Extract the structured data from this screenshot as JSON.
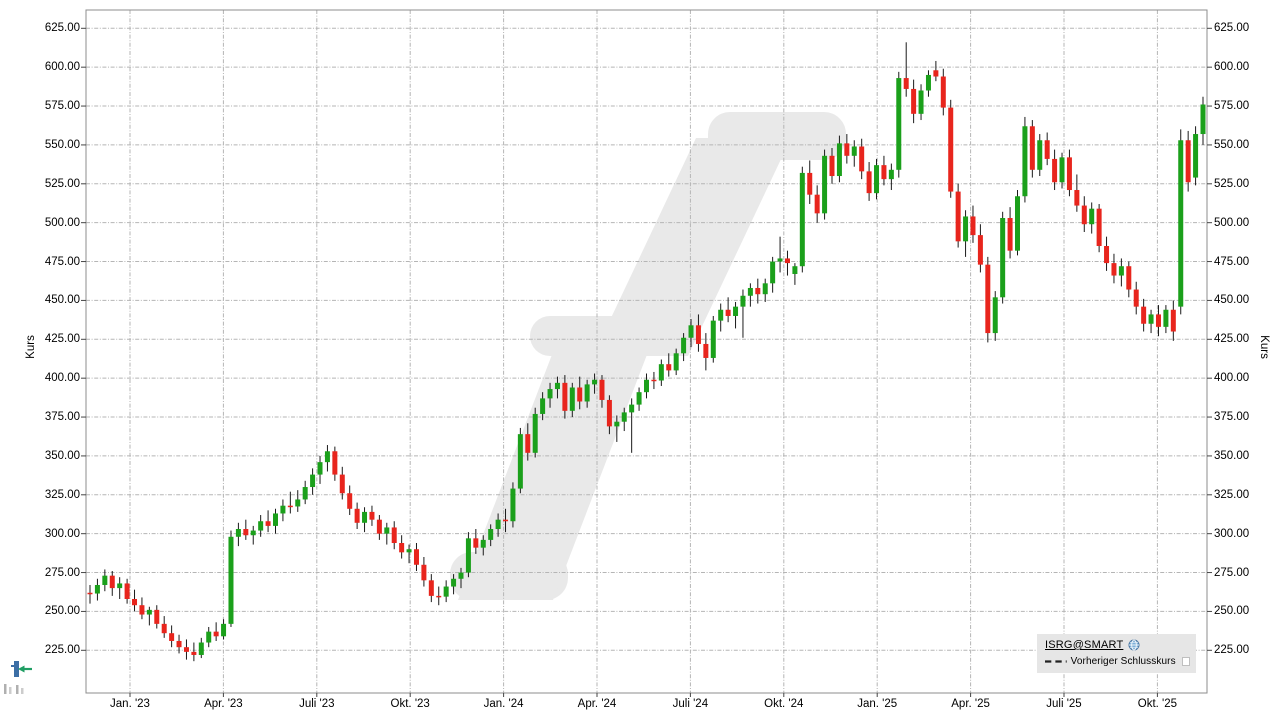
{
  "axes": {
    "left_axis_title": "Kurs",
    "right_axis_title": "Kurs"
  },
  "legend": {
    "series_label": "ISRG@SMART",
    "previous_close_label": "Vorheriger Schlusskurs",
    "icons": {
      "series": "globe-icon",
      "previous_close": "dashed-line-sample",
      "toggle": "legend-checkbox"
    }
  },
  "corner_tools": {
    "icons": {
      "chart_type": "candlestick-tool-icon",
      "volume": "volume-bars-icon"
    }
  },
  "chart_data": {
    "type": "candlestick",
    "series_name": "ISRG@SMART",
    "interval": "weekly",
    "title": "",
    "ylabel": "Kurs",
    "grid": true,
    "legend_position": "bottom-right",
    "ylim": [
      197,
      637
    ],
    "y_tick_values": [
      625,
      600,
      575,
      550,
      525,
      500,
      475,
      450,
      425,
      400,
      375,
      350,
      325,
      300,
      275,
      250,
      225
    ],
    "y_tick_labels": [
      "625.00",
      "600.00",
      "575.00",
      "550.00",
      "525.00",
      "500.00",
      "475.00",
      "450.00",
      "425.00",
      "400.00",
      "375.00",
      "350.00",
      "325.00",
      "300.00",
      "275.00",
      "250.00",
      "225.00"
    ],
    "x_tick_labels": [
      "Jan. '23",
      "Apr. '23",
      "Juli '23",
      "Okt. '23",
      "Jan. '24",
      "Apr. '24",
      "Juli '24",
      "Okt. '24",
      "Jan. '25",
      "Apr. '25",
      "Juli '25",
      "Okt. '25"
    ],
    "colors": {
      "up": "#1ba01b",
      "down": "#e8251d",
      "wick": "#1a1a1a",
      "grid": "#b5b5b5",
      "border": "#8c8c8c",
      "tick": "#444444",
      "watermark": "#e9e9e9",
      "legend_bg": "#e6e6e6",
      "text": "#000000"
    },
    "candles_ohlc": [
      [
        262,
        267,
        255,
        261.5
      ],
      [
        261.5,
        271,
        257,
        267
      ],
      [
        267,
        277,
        263,
        273
      ],
      [
        273,
        276,
        260,
        265
      ],
      [
        265,
        272,
        258,
        268
      ],
      [
        268,
        271,
        255,
        258
      ],
      [
        258,
        264,
        250,
        254
      ],
      [
        254,
        259,
        245,
        248
      ],
      [
        248,
        253,
        241,
        251
      ],
      [
        251,
        254,
        239,
        242
      ],
      [
        242,
        247,
        233,
        236
      ],
      [
        236,
        241,
        227,
        231
      ],
      [
        231,
        235,
        223,
        227
      ],
      [
        227,
        232,
        219,
        224
      ],
      [
        224,
        230,
        218,
        222
      ],
      [
        222,
        233,
        220,
        230
      ],
      [
        230,
        240,
        227,
        237
      ],
      [
        237,
        243,
        231,
        234
      ],
      [
        234,
        245,
        232,
        242
      ],
      [
        242,
        302,
        240,
        298
      ],
      [
        298,
        307,
        292,
        303
      ],
      [
        303,
        309,
        296,
        299
      ],
      [
        299,
        305,
        293,
        302
      ],
      [
        302,
        312,
        298,
        308
      ],
      [
        308,
        315,
        301,
        305
      ],
      [
        305,
        316,
        300,
        313
      ],
      [
        313,
        322,
        308,
        318
      ],
      [
        318,
        327,
        313,
        317.5
      ],
      [
        317.5,
        328,
        314,
        322
      ],
      [
        322,
        334,
        319,
        330
      ],
      [
        330,
        342,
        325,
        338
      ],
      [
        338,
        350,
        332,
        346
      ],
      [
        346,
        357,
        340,
        353
      ],
      [
        353,
        356,
        334,
        338
      ],
      [
        338,
        343,
        322,
        326
      ],
      [
        326,
        331,
        312,
        316
      ],
      [
        316,
        320,
        303,
        307
      ],
      [
        307,
        317,
        301,
        314
      ],
      [
        314,
        318,
        305,
        309
      ],
      [
        309,
        312,
        296,
        300
      ],
      [
        300,
        307,
        293,
        304
      ],
      [
        304,
        308,
        290,
        294
      ],
      [
        294,
        299,
        284,
        288
      ],
      [
        288,
        293,
        281,
        290
      ],
      [
        290,
        294,
        276,
        280
      ],
      [
        280,
        285,
        266,
        270
      ],
      [
        270,
        274,
        256,
        260
      ],
      [
        260,
        266,
        254,
        259.5
      ],
      [
        259.5,
        270,
        256,
        266
      ],
      [
        266,
        274,
        261,
        271
      ],
      [
        271,
        278,
        265,
        275
      ],
      [
        275,
        301,
        272,
        297
      ],
      [
        297,
        303,
        287,
        291
      ],
      [
        291,
        299,
        286,
        296
      ],
      [
        296,
        306,
        292,
        303
      ],
      [
        303,
        313,
        298,
        309
      ],
      [
        309,
        316,
        301,
        308
      ],
      [
        308,
        333,
        304,
        329
      ],
      [
        329,
        368,
        326,
        364
      ],
      [
        364,
        371,
        347,
        352
      ],
      [
        352,
        381,
        349,
        377
      ],
      [
        377,
        391,
        373,
        387
      ],
      [
        387,
        397,
        381,
        393
      ],
      [
        393,
        401,
        387,
        397
      ],
      [
        397,
        402,
        374,
        379
      ],
      [
        379,
        397,
        375,
        394
      ],
      [
        394,
        401,
        380,
        385
      ],
      [
        385,
        399,
        381,
        396
      ],
      [
        396,
        403,
        390,
        399
      ],
      [
        399,
        402,
        381,
        386
      ],
      [
        386,
        389,
        364,
        369
      ],
      [
        369,
        376,
        359,
        372
      ],
      [
        372,
        381,
        366,
        378
      ],
      [
        378,
        387,
        352,
        383
      ],
      [
        383,
        394,
        379,
        391
      ],
      [
        391,
        403,
        387,
        399
      ],
      [
        399,
        404,
        393,
        398.5
      ],
      [
        398.5,
        412,
        395,
        409
      ],
      [
        409,
        416,
        401,
        405
      ],
      [
        405,
        419,
        402,
        416
      ],
      [
        416,
        429,
        411,
        426
      ],
      [
        426,
        438,
        420,
        434
      ],
      [
        434,
        441,
        417,
        422
      ],
      [
        422,
        429,
        405,
        413
      ],
      [
        413,
        440,
        410,
        437
      ],
      [
        437,
        448,
        430,
        444
      ],
      [
        444,
        452,
        436,
        440
      ],
      [
        440,
        449,
        432,
        446
      ],
      [
        446,
        457,
        426,
        453
      ],
      [
        453,
        461,
        446,
        458
      ],
      [
        458,
        464,
        448,
        454
      ],
      [
        454,
        464,
        449,
        461
      ],
      [
        461,
        478,
        455,
        475
      ],
      [
        475,
        491,
        468,
        477
      ],
      [
        477,
        482,
        466,
        474
      ],
      [
        467,
        474,
        460,
        472
      ],
      [
        472,
        536,
        468,
        532
      ],
      [
        532,
        540,
        512,
        518
      ],
      [
        518,
        524,
        500,
        506
      ],
      [
        506,
        547,
        502,
        543
      ],
      [
        543,
        548,
        525,
        530
      ],
      [
        530,
        556,
        526,
        551
      ],
      [
        551,
        557,
        538,
        543
      ],
      [
        543,
        553,
        536,
        549
      ],
      [
        549,
        554,
        528,
        533
      ],
      [
        533,
        539,
        514,
        519
      ],
      [
        519,
        541,
        515,
        537
      ],
      [
        537,
        543,
        524,
        528
      ],
      [
        528,
        538,
        521,
        534
      ],
      [
        534,
        597,
        529,
        593
      ],
      [
        593,
        616,
        581,
        586
      ],
      [
        586,
        592,
        564,
        570
      ],
      [
        570,
        589,
        566,
        585
      ],
      [
        585,
        598,
        581,
        595
      ],
      [
        598,
        604,
        591,
        594
      ],
      [
        594,
        599,
        569,
        574
      ],
      [
        574,
        579,
        516,
        520
      ],
      [
        520,
        525,
        484,
        488
      ],
      [
        488,
        508,
        478,
        504
      ],
      [
        504,
        511,
        487,
        492
      ],
      [
        492,
        499,
        468,
        473
      ],
      [
        473,
        478,
        423,
        429
      ],
      [
        429,
        456,
        424,
        452
      ],
      [
        452,
        507,
        448,
        503
      ],
      [
        503,
        510,
        477,
        482
      ],
      [
        482,
        521,
        479,
        517
      ],
      [
        517,
        568,
        513,
        562
      ],
      [
        562,
        566,
        529,
        534
      ],
      [
        534,
        557,
        530,
        553
      ],
      [
        553,
        558,
        537,
        541
      ],
      [
        541,
        547,
        521,
        526
      ],
      [
        526,
        545,
        522,
        542
      ],
      [
        542,
        547,
        517,
        521
      ],
      [
        521,
        531,
        507,
        511
      ],
      [
        511,
        517,
        494,
        499
      ],
      [
        499,
        513,
        493,
        509
      ],
      [
        509,
        512,
        481,
        485
      ],
      [
        485,
        491,
        469,
        474
      ],
      [
        474,
        480,
        461,
        466
      ],
      [
        466,
        477,
        459,
        472
      ],
      [
        472,
        475,
        452,
        457
      ],
      [
        457,
        462,
        441,
        446
      ],
      [
        446,
        451,
        430,
        435
      ],
      [
        435,
        444,
        429,
        441
      ],
      [
        441,
        447,
        427,
        433
      ],
      [
        433,
        447,
        429,
        444
      ],
      [
        444,
        450,
        424,
        430
      ],
      [
        446,
        560,
        441,
        553
      ],
      [
        553,
        559,
        520,
        526
      ],
      [
        529,
        562,
        524,
        557
      ],
      [
        557,
        581,
        550,
        576
      ]
    ]
  }
}
